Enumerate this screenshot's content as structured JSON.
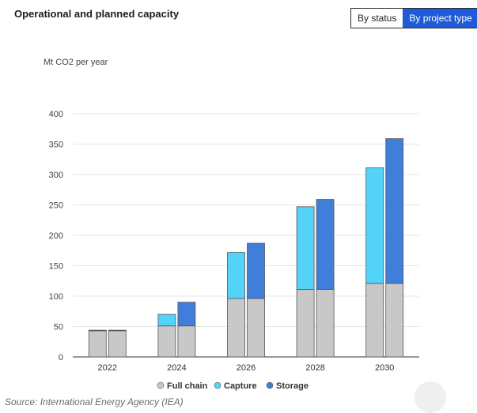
{
  "header": {
    "title": "Operational and planned capacity",
    "toggle": {
      "options": [
        "By status",
        "By project type"
      ],
      "active_index": 1
    }
  },
  "source": "Source: International Energy Agency (IEA)",
  "colors": {
    "full_chain": "#c8c8c8",
    "capture": "#52d3f7",
    "storage": "#3f7fd9",
    "grid": "#e6e6e6",
    "axis": "#333333"
  },
  "chart_data": {
    "type": "bar",
    "stacked": true,
    "title": "",
    "xlabel": "",
    "ylabel": "Mt CO2 per year",
    "ylim": [
      0,
      400
    ],
    "yticks": [
      0,
      50,
      100,
      150,
      200,
      250,
      300,
      350,
      400
    ],
    "grid": true,
    "legend_position": "bottom",
    "categories": [
      "2022",
      "2024",
      "2026",
      "2028",
      "2030"
    ],
    "groups": [
      {
        "name": "Capture",
        "base": [
          43,
          51,
          96,
          111,
          121
        ],
        "top": [
          1,
          19,
          76,
          136,
          190
        ]
      },
      {
        "name": "Storage",
        "base": [
          43,
          51,
          96,
          111,
          121
        ],
        "top": [
          1,
          39,
          91,
          148,
          238
        ]
      }
    ],
    "series": [
      {
        "name": "Full chain",
        "color_key": "full_chain"
      },
      {
        "name": "Capture",
        "color_key": "capture"
      },
      {
        "name": "Storage",
        "color_key": "storage"
      }
    ]
  }
}
